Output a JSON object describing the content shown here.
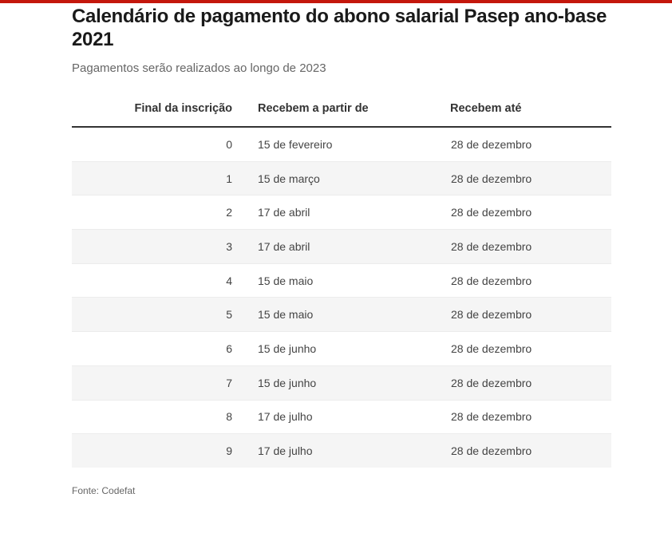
{
  "header": {
    "title": "Calendário de pagamento do abono salarial Pasep ano-base 2021",
    "subtitle": "Pagamentos serão realizados ao longo de 2023",
    "accent_color": "#c4170c"
  },
  "chart_data": {
    "type": "table",
    "title": "Calendário de pagamento do abono salarial Pasep ano-base 2021",
    "subtitle": "Pagamentos serão realizados ao longo de 2023",
    "columns": [
      "Final da inscrição",
      "Recebem a partir de",
      "Recebem até"
    ],
    "rows": [
      [
        "0",
        "15 de fevereiro",
        "28 de dezembro"
      ],
      [
        "1",
        "15 de março",
        "28 de dezembro"
      ],
      [
        "2",
        "17 de abril",
        "28 de dezembro"
      ],
      [
        "3",
        "17 de abril",
        "28 de dezembro"
      ],
      [
        "4",
        "15 de maio",
        "28 de dezembro"
      ],
      [
        "5",
        "15 de maio",
        "28 de dezembro"
      ],
      [
        "6",
        "15 de junho",
        "28 de dezembro"
      ],
      [
        "7",
        "15 de junho",
        "28 de dezembro"
      ],
      [
        "8",
        "17 de julho",
        "28 de dezembro"
      ],
      [
        "9",
        "17 de julho",
        "28 de dezembro"
      ]
    ],
    "source": "Fonte: Codefat"
  }
}
